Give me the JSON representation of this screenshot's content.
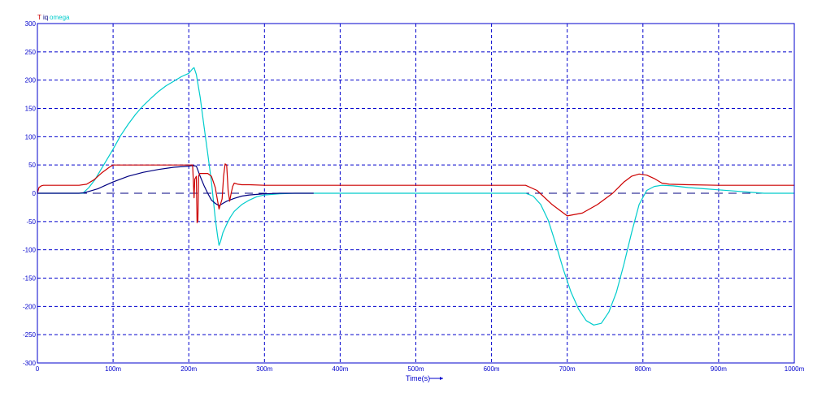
{
  "chart_data": {
    "type": "line",
    "title": "",
    "xlabel": "Time(s)",
    "ylabel": "",
    "xlim": [
      0,
      1000
    ],
    "ylim": [
      -300,
      300
    ],
    "x_unit": "ms",
    "grid": true,
    "legend_position": "top-left",
    "x_ticks": [
      "0",
      "100m",
      "200m",
      "300m",
      "400m",
      "500m",
      "600m",
      "700m",
      "800m",
      "900m",
      "1000m"
    ],
    "y_ticks": [
      "300",
      "250",
      "200",
      "150",
      "100",
      "50",
      "0",
      "-50",
      "-100",
      "-150",
      "-200",
      "-250",
      "-300"
    ],
    "legend": {
      "red_label": "T",
      "blue_label": "iq",
      "cyan_label": "omega"
    },
    "colors": {
      "red": "#cc0000",
      "blue": "#000080",
      "cyan": "#00cccc",
      "grid": "#0000cc",
      "zero": "#000080",
      "axes": "#0000cc"
    },
    "series": [
      {
        "name": "omega",
        "color": "#00cccc",
        "x": [
          0,
          60,
          68,
          76,
          84,
          92,
          100,
          110,
          120,
          130,
          140,
          150,
          160,
          170,
          180,
          190,
          200,
          205,
          207,
          210,
          215,
          220,
          225,
          230,
          235,
          238,
          240,
          242,
          245,
          250,
          255,
          260,
          270,
          280,
          290,
          300,
          320,
          340,
          360,
          400,
          500,
          600,
          645,
          655,
          665,
          675,
          685,
          695,
          705,
          715,
          725,
          735,
          745,
          755,
          765,
          775,
          785,
          795,
          805,
          815,
          825,
          840,
          860,
          880,
          900,
          920,
          940,
          960,
          1000
        ],
        "y": [
          0,
          0,
          10,
          24,
          42,
          60,
          78,
          102,
          122,
          140,
          155,
          168,
          180,
          190,
          198,
          206,
          212,
          220,
          222,
          210,
          170,
          120,
          70,
          20,
          -45,
          -75,
          -92,
          -85,
          -70,
          -55,
          -42,
          -32,
          -20,
          -12,
          -6,
          -3,
          -1,
          0,
          0,
          0,
          0,
          0,
          0,
          -5,
          -20,
          -48,
          -90,
          -135,
          -175,
          -205,
          -225,
          -233,
          -230,
          -210,
          -175,
          -125,
          -70,
          -20,
          5,
          12,
          14,
          13,
          10,
          8,
          6,
          4,
          2,
          0,
          0
        ]
      },
      {
        "name": "iq",
        "color": "#000080",
        "x": [
          0,
          55,
          62,
          70,
          80,
          90,
          100,
          110,
          120,
          140,
          160,
          180,
          200,
          205,
          210,
          215,
          220,
          225,
          230,
          235,
          240,
          245,
          250,
          260,
          270,
          280,
          290,
          300,
          320,
          340,
          365
        ],
        "y": [
          0,
          0,
          1,
          4,
          8,
          14,
          20,
          25,
          30,
          37,
          42,
          46,
          48,
          49,
          48,
          30,
          14,
          0,
          -12,
          -18,
          -22,
          -18,
          -14,
          -9,
          -5,
          -3,
          -2,
          -1,
          0,
          0,
          0
        ]
      },
      {
        "name": "T",
        "color": "#cc0000",
        "x": [
          0,
          2,
          5,
          8,
          55,
          65,
          75,
          85,
          95,
          100,
          120,
          150,
          180,
          205,
          207,
          208,
          210,
          211,
          212,
          213,
          214,
          215,
          217,
          220,
          225,
          230,
          235,
          240,
          244,
          246,
          248,
          250,
          252,
          254,
          256,
          258,
          260,
          265,
          270,
          280,
          300,
          400,
          500,
          600,
          645,
          660,
          680,
          700,
          720,
          740,
          760,
          775,
          785,
          795,
          805,
          815,
          825,
          835,
          860,
          900,
          960,
          1000
        ],
        "y": [
          0,
          10,
          13,
          14,
          14,
          16,
          24,
          36,
          46,
          50,
          50,
          50,
          50,
          50,
          -8,
          25,
          30,
          -52,
          -48,
          30,
          34,
          35,
          35,
          35,
          35,
          30,
          10,
          -28,
          -10,
          30,
          52,
          50,
          5,
          -14,
          0,
          12,
          18,
          16,
          15,
          15,
          14,
          14,
          14,
          14,
          14,
          5,
          -20,
          -40,
          -35,
          -20,
          0,
          20,
          30,
          34,
          32,
          26,
          18,
          16,
          15,
          14,
          14,
          14
        ]
      }
    ]
  }
}
